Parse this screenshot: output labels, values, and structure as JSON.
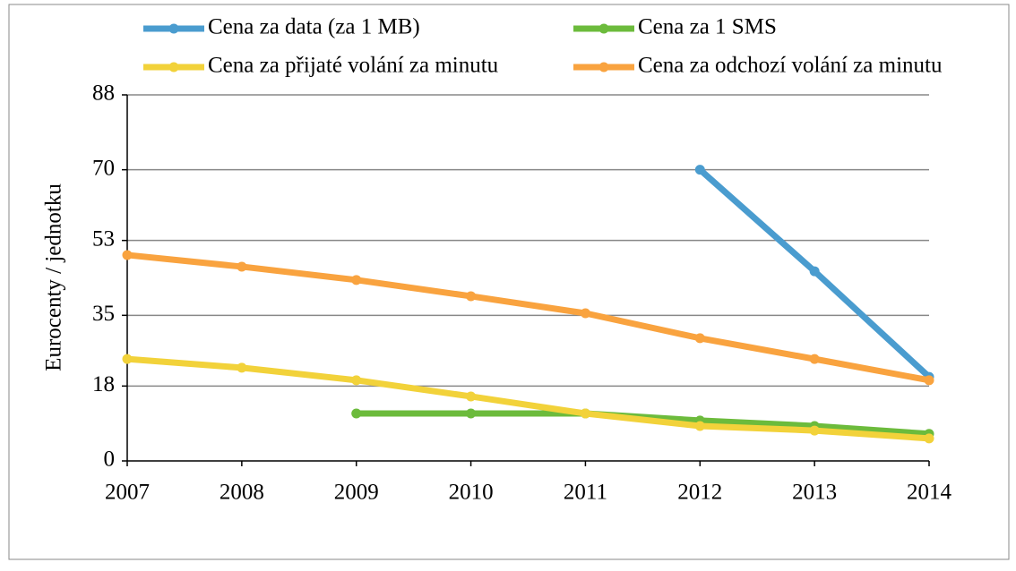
{
  "chart_data": {
    "type": "line",
    "y_label": "Eurocenty / jednotku",
    "categories": [
      "2007",
      "2008",
      "2009",
      "2010",
      "2011",
      "2012",
      "2013",
      "2014"
    ],
    "series": [
      {
        "name": "Cena za data (za 1 MB)",
        "color": "#4a9ccf",
        "values": [
          null,
          null,
          null,
          null,
          null,
          70,
          45.6,
          20.2
        ]
      },
      {
        "name": "Cena za 1 SMS",
        "color": "#6cbb3c",
        "values": [
          null,
          null,
          11.4,
          11.4,
          11.4,
          9.7,
          8.4,
          6.5
        ]
      },
      {
        "name": "Cena za přijaté volání za minutu",
        "color": "#f2d23a",
        "values": [
          24.5,
          22.4,
          19.4,
          15.5,
          11.4,
          8.4,
          7.3,
          5.4
        ]
      },
      {
        "name": "Cena za odchozí volání za minutu",
        "color": "#f9a33f",
        "values": [
          49.5,
          46.7,
          43.5,
          39.6,
          35.5,
          29.5,
          24.5,
          19.4
        ]
      }
    ],
    "ylim": [
      0,
      88
    ],
    "yticks": [
      0,
      18,
      35,
      53,
      70,
      88
    ],
    "grid": true,
    "legend": "top"
  }
}
